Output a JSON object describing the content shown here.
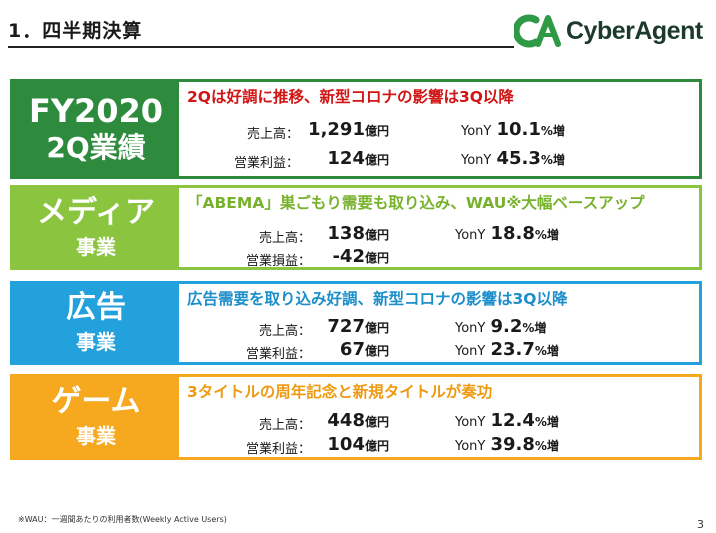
{
  "header": {
    "title": "1．四半期決算"
  },
  "logo": {
    "text": "CyberAgent",
    "mark": "CA",
    "colors": {
      "green": "#2e9a45",
      "dark": "#1b3a2a"
    }
  },
  "rows": [
    {
      "label_line1": "FY2020",
      "label_line2": "2Q業績",
      "headline": "2Qは好調に推移、新型コロナの影響は3Q以降",
      "color": "#2e8b3e",
      "metrics": [
        {
          "name": "売上高：",
          "value": "1,291",
          "unit": "億円",
          "yoy_label": "YonY",
          "yoy_value": "10.1",
          "yoy_unit": "%増"
        },
        {
          "name": "営業利益：",
          "value": "124",
          "unit": "億円",
          "yoy_label": "YonY",
          "yoy_value": "45.3",
          "yoy_unit": "%増"
        }
      ]
    },
    {
      "label_line1": "メディア",
      "label_line2": "事業",
      "headline": "「ABEMA」巣ごもり需要も取り込み、WAU※大幅ベースアップ",
      "color": "#8bc43f",
      "metrics": [
        {
          "name": "売上高：",
          "value": "138",
          "unit": "億円",
          "yoy_label": "YonY",
          "yoy_value": "18.8",
          "yoy_unit": "%増"
        },
        {
          "name": "営業損益：",
          "value": "-42",
          "unit": "億円"
        }
      ]
    },
    {
      "label_line1": "広告",
      "label_line2": "事業",
      "headline": "広告需要を取り込み好調、新型コロナの影響は3Q以降",
      "color": "#22a1dc",
      "metrics": [
        {
          "name": "売上高：",
          "value": "727",
          "unit": "億円",
          "yoy_label": "YonY",
          "yoy_value": "9.2",
          "yoy_unit": "%増"
        },
        {
          "name": "営業利益：",
          "value": "67",
          "unit": "億円",
          "yoy_label": "YonY",
          "yoy_value": "23.7",
          "yoy_unit": "%増"
        }
      ]
    },
    {
      "label_line1": "ゲーム",
      "label_line2": "事業",
      "headline": "3タイトルの周年記念と新規タイトルが奏功",
      "color": "#f6a81f",
      "metrics": [
        {
          "name": "売上高：",
          "value": "448",
          "unit": "億円",
          "yoy_label": "YonY",
          "yoy_value": "12.4",
          "yoy_unit": "%増"
        },
        {
          "name": "営業利益：",
          "value": "104",
          "unit": "億円",
          "yoy_label": "YonY",
          "yoy_value": "39.8",
          "yoy_unit": "%増"
        }
      ]
    }
  ],
  "footnote": "※WAU：一週間あたりの利用者数(Weekly Active Users)",
  "page_number": "3"
}
